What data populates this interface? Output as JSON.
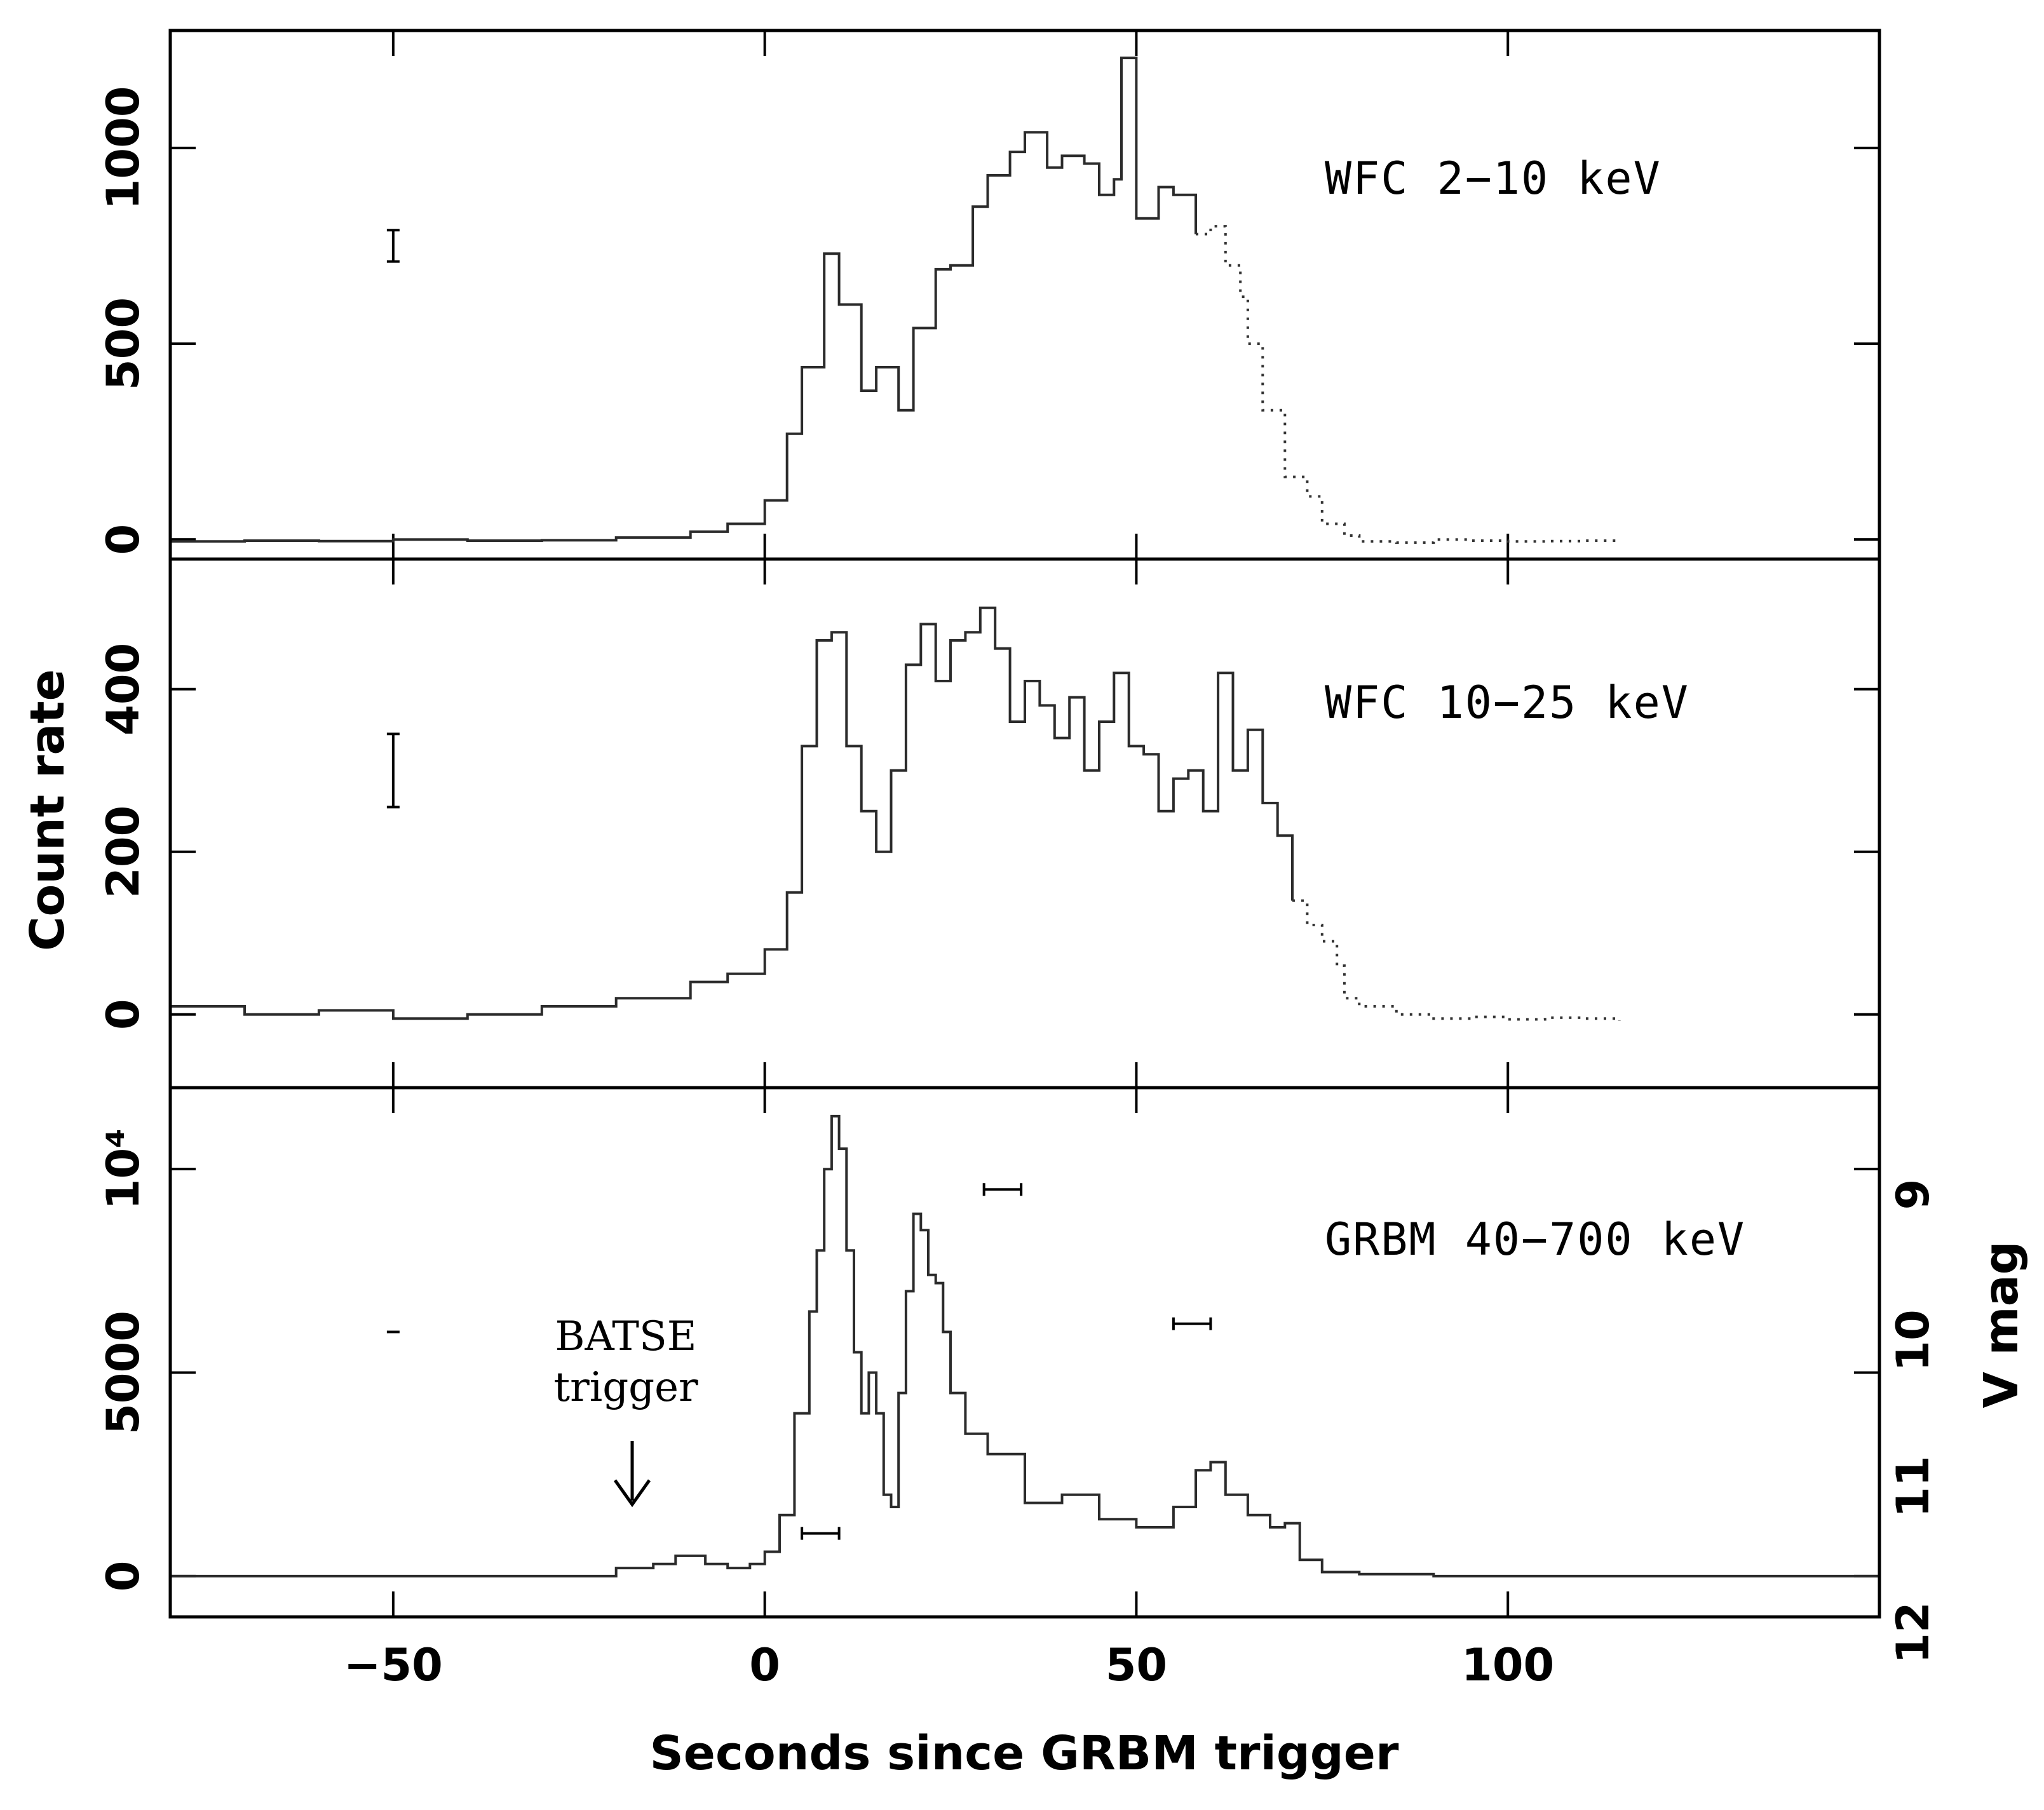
{
  "chart_data": {
    "type": "line",
    "xlabel": "Seconds since GRBM trigger",
    "ylabel": "Count rate",
    "ylabel_right": "V mag",
    "xlim": [
      -80,
      150
    ],
    "xticks": [
      -50,
      0,
      50,
      100
    ],
    "annotation": {
      "text_line1": "BATSE",
      "text_line2": "trigger",
      "arrow_x": -18
    },
    "panels": [
      {
        "name": "WFC 2-10 keV",
        "label": "WFC 2−10 keV",
        "ylim": [
          -50,
          1300
        ],
        "yticks": [
          0,
          500,
          1000
        ],
        "ytick_labels": [
          "0",
          "500",
          "1000"
        ],
        "errorbar": {
          "x": -50,
          "y": 750,
          "half": 40
        },
        "series": [
          {
            "style": "solid",
            "x": [
              -80,
              -70,
              -60,
              -50,
              -40,
              -30,
              -20,
              -10,
              -5,
              0,
              3,
              5,
              8,
              10,
              13,
              15,
              18,
              20,
              23,
              25,
              28,
              30,
              33,
              35,
              38,
              40,
              43,
              45,
              47,
              48,
              49,
              50,
              53,
              55,
              58
            ],
            "y": [
              -5,
              -3,
              -4,
              0,
              -3,
              -2,
              5,
              20,
              40,
              100,
              270,
              440,
              730,
              600,
              380,
              440,
              330,
              540,
              690,
              700,
              850,
              930,
              990,
              1040,
              950,
              980,
              960,
              880,
              920,
              1230,
              1230,
              820,
              900,
              880,
              780
            ]
          },
          {
            "style": "dotted",
            "x": [
              58,
              60,
              62,
              64,
              65,
              67,
              70,
              73,
              75,
              78,
              80,
              85,
              90,
              95,
              100,
              105,
              110,
              115
            ],
            "y": [
              780,
              800,
              700,
              620,
              500,
              330,
              160,
              110,
              40,
              10,
              -5,
              -8,
              0,
              -3,
              -5,
              -4,
              -3,
              -5
            ]
          }
        ]
      },
      {
        "name": "WFC 10-25 keV",
        "label": "WFC 10−25 keV",
        "ylim": [
          -90,
          560
        ],
        "yticks": [
          0,
          200,
          400
        ],
        "ytick_labels": [
          "0",
          "200",
          "400"
        ],
        "errorbar": {
          "x": -50,
          "y": 300,
          "half": 45
        },
        "series": [
          {
            "style": "solid",
            "x": [
              -80,
              -70,
              -60,
              -50,
              -40,
              -30,
              -20,
              -10,
              -5,
              0,
              3,
              5,
              7,
              9,
              11,
              13,
              15,
              17,
              19,
              21,
              23,
              25,
              27,
              29,
              31,
              33,
              35,
              37,
              39,
              41,
              43,
              45,
              47,
              49,
              51,
              53,
              55,
              57,
              59,
              61,
              63,
              65,
              67,
              69,
              71
            ],
            "y": [
              10,
              0,
              5,
              -5,
              0,
              10,
              20,
              40,
              50,
              80,
              150,
              330,
              460,
              470,
              330,
              250,
              200,
              300,
              430,
              480,
              410,
              460,
              470,
              500,
              450,
              360,
              410,
              380,
              340,
              390,
              300,
              360,
              420,
              330,
              320,
              250,
              290,
              300,
              250,
              420,
              300,
              350,
              260,
              220,
              140
            ]
          },
          {
            "style": "dotted",
            "x": [
              71,
              73,
              75,
              77,
              78,
              80,
              85,
              90,
              95,
              100,
              105,
              110,
              115
            ],
            "y": [
              140,
              110,
              90,
              60,
              20,
              10,
              0,
              -5,
              -3,
              -6,
              -4,
              -5,
              -8
            ]
          }
        ]
      },
      {
        "name": "GRBM 40-700 keV",
        "label": "GRBM 40−700 keV",
        "ylim": [
          -1000,
          12000
        ],
        "yticks": [
          0,
          5000,
          10000
        ],
        "ytick_labels": [
          "0",
          "5000",
          "10⁴"
        ],
        "errorbar": {
          "x": -50,
          "y": 6000,
          "half": 0
        },
        "vmag_ticks": [
          "9",
          "10",
          "11",
          "12"
        ],
        "optical_points": [
          {
            "x": 7.5,
            "xerr": 2.5,
            "y": 1050
          },
          {
            "x": 32,
            "xerr": 2.5,
            "y": 9500
          },
          {
            "x": 57.5,
            "xerr": 2.5,
            "y": 6200
          }
        ],
        "series": [
          {
            "style": "solid",
            "x": [
              -80,
              -60,
              -40,
              -25,
              -20,
              -15,
              -12,
              -8,
              -5,
              -2,
              0,
              2,
              4,
              6,
              7,
              8,
              9,
              10,
              11,
              12,
              13,
              14,
              15,
              16,
              17,
              18,
              19,
              20,
              21,
              22,
              23,
              24,
              25,
              27,
              30,
              35,
              40,
              45,
              50,
              55,
              58,
              60,
              62,
              65,
              68,
              70,
              72,
              75,
              80,
              90,
              100,
              120,
              150
            ],
            "y": [
              0,
              0,
              0,
              0,
              200,
              300,
              500,
              300,
              200,
              300,
              600,
              1500,
              4000,
              6500,
              8000,
              10000,
              11300,
              10500,
              8000,
              5500,
              4000,
              5000,
              4000,
              2000,
              1700,
              4500,
              7000,
              8900,
              8500,
              7400,
              7200,
              6000,
              4500,
              3500,
              3000,
              1800,
              2000,
              1400,
              1200,
              1700,
              2600,
              2800,
              2000,
              1500,
              1200,
              1300,
              400,
              100,
              50,
              0,
              0,
              0,
              0
            ]
          }
        ]
      }
    ]
  }
}
